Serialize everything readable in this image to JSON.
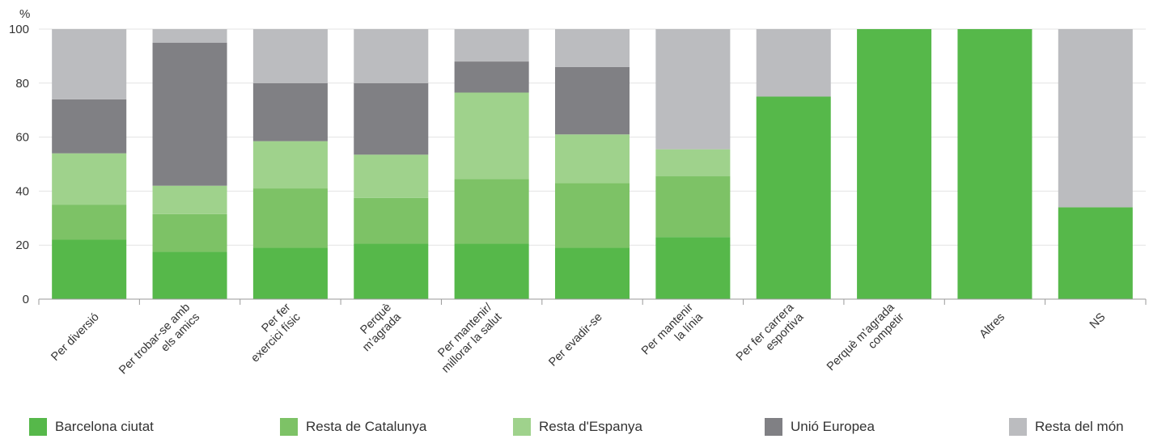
{
  "chart_data": {
    "type": "bar",
    "stacked": true,
    "ylabel": "%",
    "ylim": [
      0,
      100
    ],
    "yticks": [
      0,
      20,
      40,
      60,
      80,
      100
    ],
    "grid": true,
    "legend_position": "bottom",
    "categories": [
      [
        "Per diversió"
      ],
      [
        "Per trobar-se amb",
        "els amics"
      ],
      [
        "Per fer",
        "exercici físic"
      ],
      [
        "Perquè",
        "m'agrada"
      ],
      [
        "Per mantenir/",
        "millorar la salut"
      ],
      [
        "Per evadir-se"
      ],
      [
        "Per mantenir",
        "la línia"
      ],
      [
        "Per fer carrera",
        "esportiva"
      ],
      [
        "Perquè m'agrada",
        "competir"
      ],
      [
        "Altres"
      ],
      [
        "NS"
      ]
    ],
    "series": [
      {
        "name": "Barcelona ciutat",
        "color": "#56b84a",
        "values": [
          22,
          17.5,
          19,
          20.5,
          20.5,
          19,
          23,
          75,
          100,
          100,
          34
        ]
      },
      {
        "name": "Resta de Catalunya",
        "color": "#7dc266",
        "values": [
          13,
          14,
          22,
          17,
          24,
          24,
          22.5,
          0,
          0,
          0,
          0
        ]
      },
      {
        "name": "Resta d'Espanya",
        "color": "#9fd28c",
        "values": [
          19,
          10.5,
          17.5,
          16,
          32,
          18,
          10,
          0,
          0,
          0,
          0
        ]
      },
      {
        "name": "Unió Europea",
        "color": "#808084",
        "values": [
          20,
          53,
          21.5,
          26.5,
          11.5,
          25,
          0,
          0,
          0,
          0,
          0
        ]
      },
      {
        "name": "Resta del món",
        "color": "#bbbcbf",
        "values": [
          26,
          5,
          20,
          20,
          12,
          14,
          44.5,
          25,
          0,
          0,
          66
        ]
      }
    ]
  }
}
